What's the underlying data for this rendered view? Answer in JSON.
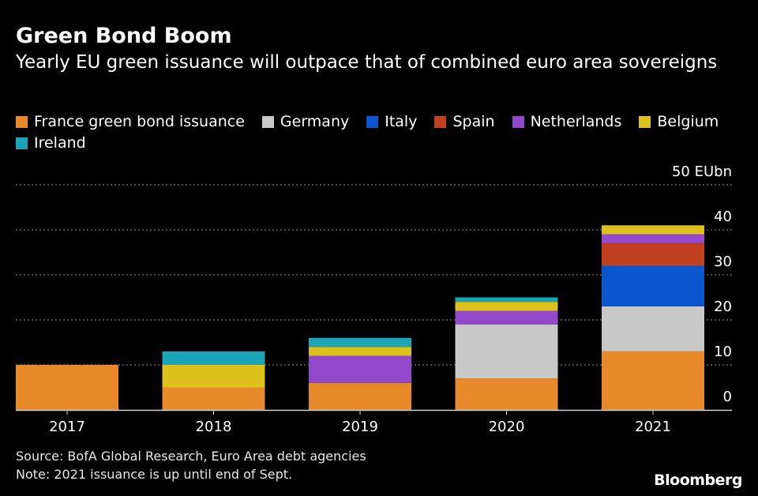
{
  "chart_data": {
    "type": "bar",
    "stacked": true,
    "title": "Green Bond Boom",
    "subtitle": "Yearly EU green issuance will outpace that of combined euro area sovereigns",
    "unit_label": "50 EUbn",
    "categories": [
      "2017",
      "2018",
      "2019",
      "2020",
      "2021"
    ],
    "yticks": [
      0,
      10,
      20,
      30,
      40,
      50
    ],
    "ylim": [
      0,
      50
    ],
    "grid": true,
    "legend_position": "top",
    "series": [
      {
        "name": "France green bond issuance",
        "color": "#e8892c",
        "values": [
          10,
          5,
          6,
          7,
          13
        ]
      },
      {
        "name": "Germany",
        "color": "#c8c8c8",
        "values": [
          0,
          0,
          0,
          12,
          10
        ]
      },
      {
        "name": "Italy",
        "color": "#0b55cf",
        "values": [
          0,
          0,
          0,
          0,
          9
        ]
      },
      {
        "name": "Spain",
        "color": "#c0401f",
        "values": [
          0,
          0,
          0,
          0,
          5
        ]
      },
      {
        "name": "Netherlands",
        "color": "#9448cc",
        "values": [
          0,
          0,
          6,
          3,
          2
        ]
      },
      {
        "name": "Belgium",
        "color": "#dcc21a",
        "values": [
          0,
          5,
          2,
          2,
          2
        ]
      },
      {
        "name": "Ireland",
        "color": "#1aa6b8",
        "values": [
          0,
          3,
          2,
          1,
          0
        ]
      }
    ]
  },
  "footer": {
    "source": "Source: BofA Global Research, Euro Area debt agencies",
    "note": "Note: 2021 issuance is up until end of Sept.",
    "brand": "Bloomberg"
  }
}
